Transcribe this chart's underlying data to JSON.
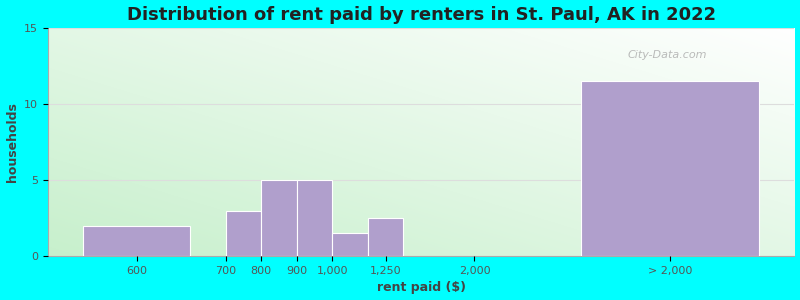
{
  "title": "Distribution of rent paid by renters in St. Paul, AK in 2022",
  "xlabel": "rent paid ($)",
  "ylabel": "households",
  "bar_labels": [
    "600",
    "700",
    "800",
    "900",
    "1,000",
    "1,250",
    "2,000",
    "> 2,000"
  ],
  "bar_values": [
    2,
    3,
    5,
    5,
    1.5,
    2.5,
    0,
    11.5
  ],
  "bar_color": "#b09fcc",
  "ylim": [
    0,
    15
  ],
  "yticks": [
    0,
    5,
    10,
    15
  ],
  "bg_outer": "#00ffff",
  "title_fontsize": 13,
  "axis_label_fontsize": 9,
  "tick_fontsize": 8,
  "watermark": "City-Data.com",
  "bar_left_edges": [
    0.5,
    2.5,
    3.0,
    3.5,
    4.0,
    4.5,
    5.5,
    7.5
  ],
  "bar_widths": [
    1.5,
    0.5,
    0.5,
    0.5,
    0.5,
    0.5,
    0.0,
    2.5
  ],
  "tick_xpos": [
    1.25,
    2.5,
    3.0,
    3.5,
    4.0,
    4.75,
    6.0,
    8.75
  ],
  "xlim": [
    0,
    10.5
  ]
}
